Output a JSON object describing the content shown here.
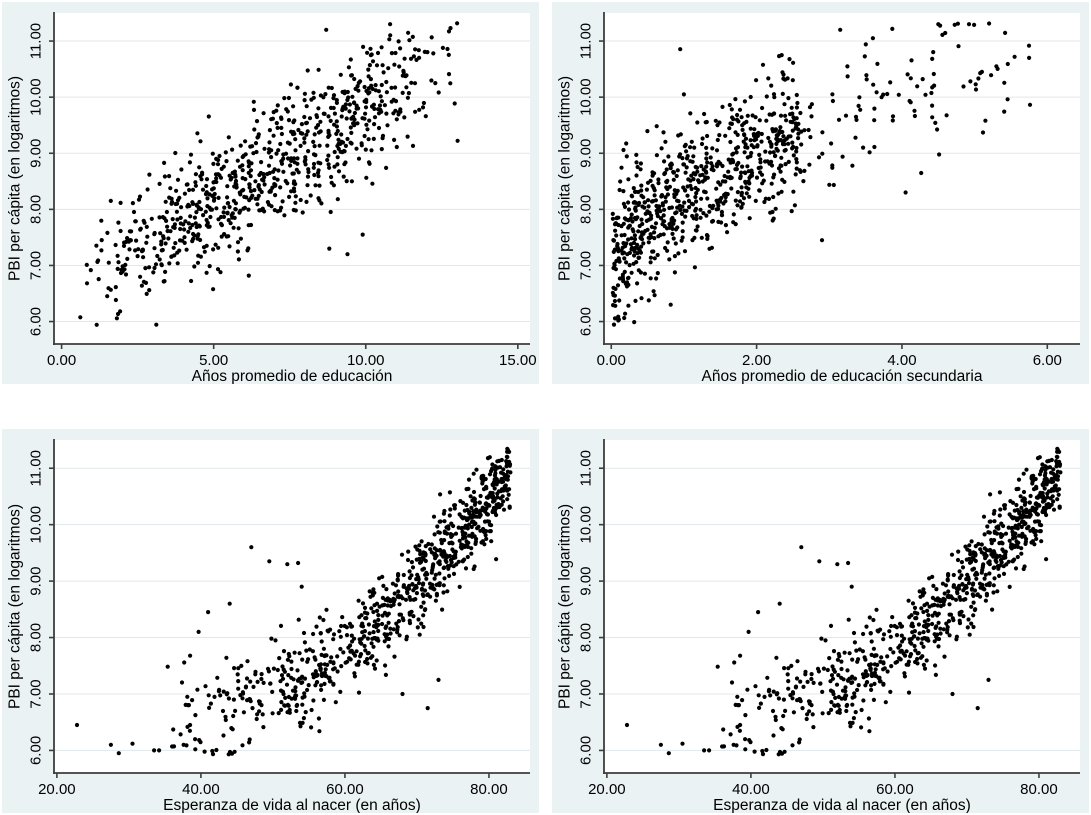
{
  "page": {
    "background": "#ffffff"
  },
  "style": {
    "panel_background": "#eaf2f3",
    "plot_area_background": "#ffffff",
    "grid_color": "#e0e8eb",
    "axis_color": "#3d3d3d",
    "tick_color": "#3d3d3d",
    "text_color": "#000000",
    "point_color": "#000000",
    "point_radius": 2.1,
    "tick_font_size": 15,
    "axis_title_font_size": 15.5
  },
  "chart_data": [
    {
      "type": "scatter",
      "position": "top-left",
      "title": "",
      "xlabel": "Años promedio de educación",
      "ylabel": "PBI per cápita (en logaritmos)",
      "xlim": [
        -0.25,
        15.4
      ],
      "ylim": [
        5.6,
        11.5
      ],
      "xticks": [
        {
          "v": 0,
          "label": "0.00"
        },
        {
          "v": 5,
          "label": "5.00"
        },
        {
          "v": 10,
          "label": "10.00"
        },
        {
          "v": 15,
          "label": "15.00"
        }
      ],
      "yticks": [
        {
          "v": 6,
          "label": "6.00"
        },
        {
          "v": 7,
          "label": "7.00"
        },
        {
          "v": 8,
          "label": "8.00"
        },
        {
          "v": 9,
          "label": "9.00"
        },
        {
          "v": 10,
          "label": "10.00"
        },
        {
          "v": 11,
          "label": "11.00"
        }
      ],
      "grid": "horizontal",
      "ytick_angle": "vertical",
      "points": {
        "n": 800,
        "seed": 101,
        "x_dist": {
          "kind": "trapezoid",
          "min": 0.25,
          "span": 13.1,
          "w1": 0.3,
          "w2": 0.7
        },
        "model": {
          "kind": "linear",
          "a": 6.45,
          "b": 0.335
        },
        "noise": {
          "sd0": 0.58,
          "sd_slope": 0,
          "x0": 0,
          "sd_min": 0.2
        },
        "y_clamp": [
          5.93,
          11.32
        ]
      },
      "extra_points": [
        [
          8.8,
          7.3
        ],
        [
          9.4,
          7.2
        ],
        [
          9.9,
          7.55
        ],
        [
          8.7,
          11.2
        ],
        [
          10.8,
          11.3
        ]
      ]
    },
    {
      "type": "scatter",
      "position": "top-right",
      "title": "",
      "xlabel": "Años promedio de educación secundaria",
      "ylabel": "PBI per cápita (en logaritmos)",
      "xlim": [
        -0.1,
        6.45
      ],
      "ylim": [
        5.6,
        11.5
      ],
      "xticks": [
        {
          "v": 0,
          "label": "0.00"
        },
        {
          "v": 2,
          "label": "2.00"
        },
        {
          "v": 4,
          "label": "4.00"
        },
        {
          "v": 6,
          "label": "6.00"
        }
      ],
      "yticks": [
        {
          "v": 6,
          "label": "6.00"
        },
        {
          "v": 7,
          "label": "7.00"
        },
        {
          "v": 8,
          "label": "8.00"
        },
        {
          "v": 9,
          "label": "9.00"
        },
        {
          "v": 10,
          "label": "10.00"
        },
        {
          "v": 11,
          "label": "11.00"
        }
      ],
      "grid": "horizontal",
      "ytick_angle": "vertical",
      "points": {
        "n": 830,
        "seed": 202,
        "x_dist": {
          "kind": "mixture",
          "comps": [
            {
              "w": 0.8,
              "kind": "power",
              "min": 0.02,
              "span": 2.6,
              "p": 1.2
            },
            {
              "w": 0.2,
              "kind": "power",
              "min": 2.2,
              "span": 3.6,
              "p": 2.0
            }
          ]
        },
        "model": {
          "kind": "sqrt",
          "a": 6.7,
          "b": 1.68
        },
        "noise": {
          "sd0": 0.6,
          "sd_slope": 0,
          "x0": 0,
          "sd_min": 0.2
        },
        "y_clamp": [
          5.93,
          11.32
        ]
      },
      "extra_points": [
        [
          3.15,
          11.2
        ],
        [
          4.5,
          11.3
        ],
        [
          3.6,
          11.05
        ],
        [
          4.05,
          8.3
        ],
        [
          2.9,
          7.45
        ],
        [
          5.75,
          10.7
        ],
        [
          5.55,
          10.72
        ],
        [
          5.3,
          10.55
        ],
        [
          5.1,
          10.45
        ]
      ]
    },
    {
      "type": "scatter",
      "position": "bottom-left",
      "title": "",
      "xlabel": "Esperanza de vida al nacer (en años)",
      "ylabel": "PBI per cápita (en logaritmos)",
      "xlim": [
        19.6,
        85.7
      ],
      "ylim": [
        5.6,
        11.5
      ],
      "xticks": [
        {
          "v": 20,
          "label": "20.00"
        },
        {
          "v": 40,
          "label": "40.00"
        },
        {
          "v": 60,
          "label": "60.00"
        },
        {
          "v": 80,
          "label": "80.00"
        }
      ],
      "yticks": [
        {
          "v": 6,
          "label": "6.00"
        },
        {
          "v": 7,
          "label": "7.00"
        },
        {
          "v": 8,
          "label": "8.00"
        },
        {
          "v": 9,
          "label": "9.00"
        },
        {
          "v": 10,
          "label": "10.00"
        },
        {
          "v": 11,
          "label": "11.00"
        }
      ],
      "grid": "horizontal",
      "ytick_angle": "vertical",
      "points": {
        "n": 850,
        "seed": 303,
        "x_dist": {
          "kind": "power",
          "min": 35,
          "span": 48,
          "p": 0.55
        },
        "model": {
          "kind": "quad",
          "a": 6.55,
          "b": 0.00175,
          "c": 33
        },
        "noise": {
          "sd0": 0.52,
          "sd_slope": -0.004,
          "x0": 35,
          "sd_min": 0.3
        },
        "y_clamp": [
          5.93,
          11.35
        ]
      },
      "extra_points": [
        [
          22.8,
          6.45
        ],
        [
          27.5,
          6.1
        ],
        [
          28.6,
          5.95
        ],
        [
          30.5,
          6.12
        ],
        [
          33.5,
          6.0
        ],
        [
          34.2,
          6.0
        ],
        [
          36.0,
          6.07
        ],
        [
          37.6,
          6.1
        ],
        [
          38.5,
          6.45
        ],
        [
          47.0,
          9.6
        ],
        [
          49.5,
          9.35
        ],
        [
          52.0,
          9.3
        ],
        [
          53.5,
          9.32
        ],
        [
          54.0,
          8.9
        ],
        [
          44.0,
          8.6
        ],
        [
          41.0,
          8.45
        ],
        [
          71.5,
          6.75
        ],
        [
          68.0,
          7.0
        ],
        [
          73.0,
          7.25
        ]
      ]
    },
    {
      "type": "scatter",
      "position": "bottom-right",
      "title": "",
      "xlabel": "Esperanza de vida al nacer (en años)",
      "ylabel": "PBI per cápita (en logaritmos)",
      "xlim": [
        19.6,
        85.7
      ],
      "ylim": [
        5.6,
        11.5
      ],
      "xticks": [
        {
          "v": 20,
          "label": "20.00"
        },
        {
          "v": 40,
          "label": "40.00"
        },
        {
          "v": 60,
          "label": "60.00"
        },
        {
          "v": 80,
          "label": "80.00"
        }
      ],
      "yticks": [
        {
          "v": 6,
          "label": "6.00"
        },
        {
          "v": 7,
          "label": "7.00"
        },
        {
          "v": 8,
          "label": "8.00"
        },
        {
          "v": 9,
          "label": "9.00"
        },
        {
          "v": 10,
          "label": "10.00"
        },
        {
          "v": 11,
          "label": "11.00"
        }
      ],
      "grid": "horizontal",
      "ytick_angle": "vertical",
      "points": {
        "n": 850,
        "seed": 303,
        "x_dist": {
          "kind": "power",
          "min": 35,
          "span": 48,
          "p": 0.55
        },
        "model": {
          "kind": "quad",
          "a": 6.55,
          "b": 0.00175,
          "c": 33
        },
        "noise": {
          "sd0": 0.52,
          "sd_slope": -0.004,
          "x0": 35,
          "sd_min": 0.3
        },
        "y_clamp": [
          5.93,
          11.35
        ]
      },
      "extra_points": [
        [
          22.8,
          6.45
        ],
        [
          27.5,
          6.1
        ],
        [
          28.6,
          5.95
        ],
        [
          30.5,
          6.12
        ],
        [
          33.5,
          6.0
        ],
        [
          34.2,
          6.0
        ],
        [
          36.0,
          6.07
        ],
        [
          37.6,
          6.1
        ],
        [
          38.5,
          6.45
        ],
        [
          47.0,
          9.6
        ],
        [
          49.5,
          9.35
        ],
        [
          52.0,
          9.3
        ],
        [
          53.5,
          9.32
        ],
        [
          54.0,
          8.9
        ],
        [
          44.0,
          8.6
        ],
        [
          41.0,
          8.45
        ],
        [
          71.5,
          6.75
        ],
        [
          68.0,
          7.0
        ],
        [
          73.0,
          7.25
        ]
      ]
    }
  ]
}
